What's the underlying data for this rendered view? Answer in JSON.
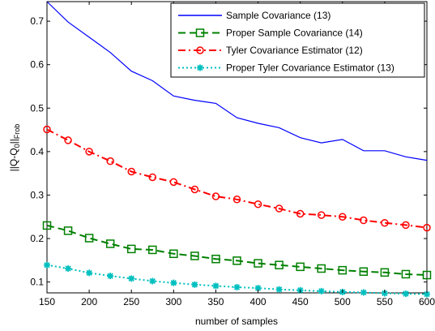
{
  "chart_data": {
    "type": "line",
    "xlabel": "number of samples",
    "ylabel": "||Q-Q₀||Frob",
    "ylabel_parts": {
      "main": "||Q-Q",
      "sub0": "0",
      "mid": "||",
      "sub1": "Frob"
    },
    "xlim": [
      150,
      600
    ],
    "ylim": [
      0.075,
      0.745
    ],
    "xticks": [
      150,
      200,
      250,
      300,
      350,
      400,
      450,
      500,
      550,
      600
    ],
    "yticks": [
      0.1,
      0.2,
      0.3,
      0.4,
      0.5,
      0.6,
      0.7
    ],
    "ytick_labels": [
      "0.1",
      "0.2",
      "0.3",
      "0.4",
      "0.5",
      "0.6",
      "0.7"
    ],
    "grid": false,
    "legend_position": "top-right",
    "x": [
      150,
      175,
      200,
      225,
      250,
      275,
      300,
      325,
      350,
      375,
      400,
      425,
      450,
      475,
      500,
      525,
      550,
      575,
      600
    ],
    "series": [
      {
        "name": "Sample Covariance (13)",
        "color": "#0000ff",
        "line_style": "solid",
        "marker": "none",
        "values": [
          0.745,
          0.698,
          0.663,
          0.628,
          0.585,
          0.563,
          0.528,
          0.518,
          0.511,
          0.478,
          0.465,
          0.455,
          0.432,
          0.42,
          0.428,
          0.402,
          0.402,
          0.388,
          0.38
        ]
      },
      {
        "name": "Proper Sample Covariance (14)",
        "color": "#008000",
        "line_style": "dashed",
        "marker": "square",
        "values": [
          0.23,
          0.218,
          0.201,
          0.188,
          0.176,
          0.174,
          0.165,
          0.16,
          0.153,
          0.149,
          0.143,
          0.139,
          0.135,
          0.131,
          0.127,
          0.124,
          0.122,
          0.118,
          0.116
        ]
      },
      {
        "name": "Tyler Covariance Estimator (12)",
        "color": "#ff0000",
        "line_style": "dashdot",
        "marker": "circle",
        "values": [
          0.451,
          0.426,
          0.4,
          0.378,
          0.354,
          0.341,
          0.33,
          0.313,
          0.297,
          0.29,
          0.279,
          0.269,
          0.257,
          0.254,
          0.25,
          0.242,
          0.236,
          0.231,
          0.225
        ]
      },
      {
        "name": "Proper Tyler Covariance Estimator (13)",
        "color": "#00bfbf",
        "line_style": "dotted",
        "marker": "star",
        "values": [
          0.139,
          0.131,
          0.121,
          0.114,
          0.108,
          0.102,
          0.098,
          0.094,
          0.091,
          0.088,
          0.086,
          0.083,
          0.081,
          0.079,
          0.077,
          0.076,
          0.074,
          0.073,
          0.072
        ]
      }
    ]
  }
}
